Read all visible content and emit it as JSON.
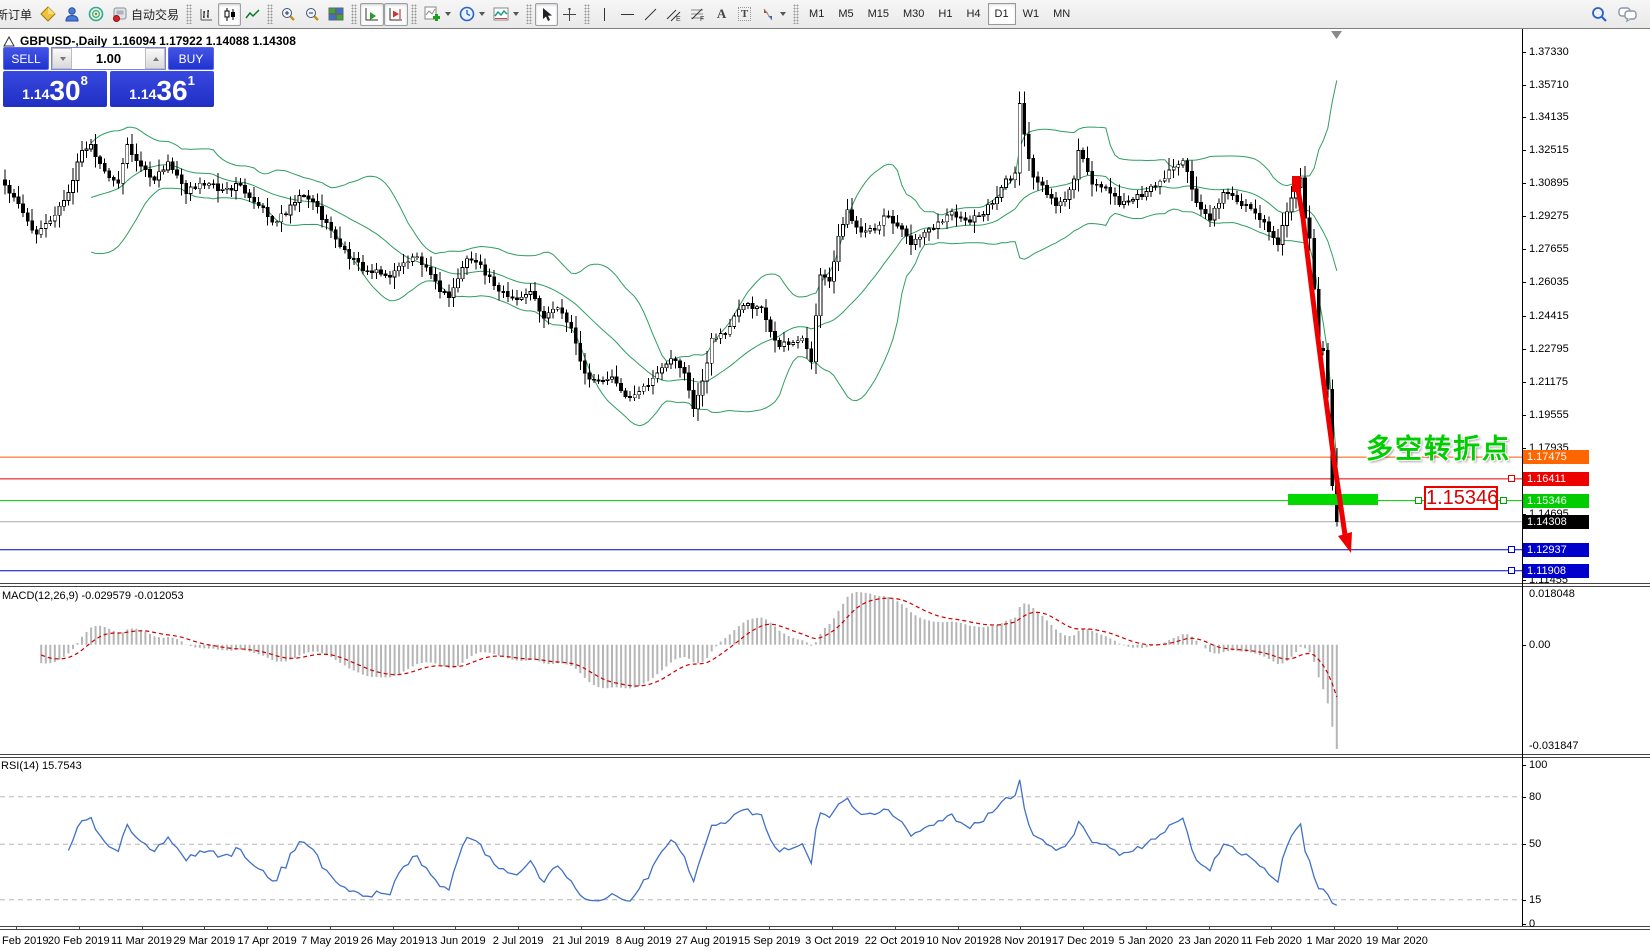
{
  "toolbar": {
    "new_order_label": "新订单",
    "autotrade_label": "自动交易",
    "timeframes": [
      "M1",
      "M5",
      "M15",
      "M30",
      "H1",
      "H4",
      "D1",
      "W1",
      "MN"
    ],
    "active_timeframe": "D1"
  },
  "chart_header": {
    "symbol_title": "GBPUSD-,Daily",
    "ohlc": "1.16094 1.17922 1.14088 1.14308"
  },
  "one_click": {
    "sell_label": "SELL",
    "buy_label": "BUY",
    "volume": "1.00",
    "sell_price_base": "1.14",
    "sell_price_big": "30",
    "sell_price_sup": "8",
    "buy_price_base": "1.14",
    "buy_price_big": "36",
    "buy_price_sup": "1"
  },
  "indicator_labels": {
    "macd": "MACD(12,26,9)",
    "macd_values": "-0.029579 -0.012053",
    "rsi": "RSI(14)",
    "rsi_value": "15.7543"
  },
  "annotations": {
    "turning_point_text": "多空转折点",
    "price_label": "1.15346"
  },
  "chart_data": {
    "type": "candlestick",
    "symbol": "GBPUSD",
    "timeframe": "Daily",
    "title": "GBPUSD-,Daily 1.16094 1.17922 1.14088 1.14308",
    "price_ticks": [
      "1.37330",
      "1.35710",
      "1.34135",
      "1.32515",
      "1.30895",
      "1.29275",
      "1.27655",
      "1.26035",
      "1.24415",
      "1.22795",
      "1.21175",
      "1.19555",
      "1.17935",
      "1.14695",
      "1.11455"
    ],
    "time_ticks": [
      "Feb 2019",
      "20 Feb 2019",
      "11 Mar 2019",
      "29 Mar 2019",
      "17 Apr 2019",
      "7 May 2019",
      "26 May 2019",
      "13 Jun 2019",
      "2 Jul 2019",
      "21 Jul 2019",
      "8 Aug 2019",
      "27 Aug 2019",
      "15 Sep 2019",
      "3 Oct 2019",
      "22 Oct 2019",
      "10 Nov 2019",
      "28 Nov 2019",
      "17 Dec 2019",
      "5 Jan 2020",
      "23 Jan 2020",
      "11 Feb 2020",
      "1 Mar 2020",
      "19 Mar 2020"
    ],
    "levels": [
      {
        "price": 1.17475,
        "color": "#ff5a00",
        "tag_bg": "#ff6600"
      },
      {
        "price": 1.16411,
        "color": "#dd0000",
        "tag_bg": "#ee0000",
        "anchor": true
      },
      {
        "price": 1.15346,
        "color": "#00c800",
        "tag_bg": "#00cc00"
      },
      {
        "price": 1.12937,
        "color": "#0000c8",
        "tag_bg": "#0000cc",
        "anchor": true
      },
      {
        "price": 1.11908,
        "color": "#0000c8",
        "tag_bg": "#0000cc",
        "anchor": true
      }
    ],
    "current_price": {
      "price": 1.14308,
      "line_color": "#aaaaaa",
      "tag_bg": "#000000"
    },
    "last_candle": {
      "open": 1.16094,
      "high": 1.17922,
      "low": 1.14088,
      "close": 1.14308
    },
    "bollinger": {
      "period": 20,
      "deviation": 2,
      "color": "#2f9e60"
    },
    "macd": {
      "fast": 12,
      "slow": 26,
      "signal": 9,
      "current": [
        -0.029579,
        -0.012053
      ],
      "axis": [
        "0.018048",
        "0.00",
        "-0.031847"
      ],
      "histogram_color": "#b6b6b6",
      "signal_color": "#cc0000"
    },
    "rsi": {
      "period": 14,
      "current": 15.7543,
      "axis": [
        "100",
        "80",
        "50",
        "15",
        "0"
      ],
      "level_lines": [
        80,
        50,
        15
      ],
      "color": "#4070c8"
    },
    "total_bars": 295,
    "close_path_keypoints": [
      [
        0,
        1.308
      ],
      [
        4,
        1.2945
      ],
      [
        7,
        1.284
      ],
      [
        10,
        1.2905
      ],
      [
        14,
        1.3045
      ],
      [
        17,
        1.325
      ],
      [
        19,
        1.328
      ],
      [
        22,
        1.315
      ],
      [
        25,
        1.309
      ],
      [
        27,
        1.328
      ],
      [
        29,
        1.32
      ],
      [
        33,
        1.3105
      ],
      [
        36,
        1.3195
      ],
      [
        40,
        1.304
      ],
      [
        43,
        1.309
      ],
      [
        48,
        1.306
      ],
      [
        52,
        1.308
      ],
      [
        56,
        1.298
      ],
      [
        59,
        1.29
      ],
      [
        62,
        1.2935
      ],
      [
        65,
        1.303
      ],
      [
        68,
        1.3
      ],
      [
        72,
        1.286
      ],
      [
        76,
        1.272
      ],
      [
        80,
        1.266
      ],
      [
        85,
        1.263
      ],
      [
        88,
        1.27
      ],
      [
        91,
        1.273
      ],
      [
        96,
        1.256
      ],
      [
        98,
        1.253
      ],
      [
        102,
        1.272
      ],
      [
        105,
        1.269
      ],
      [
        109,
        1.256
      ],
      [
        113,
        1.252
      ],
      [
        116,
        1.256
      ],
      [
        119,
        1.243
      ],
      [
        122,
        1.248
      ],
      [
        125,
        1.238
      ],
      [
        128,
        1.216
      ],
      [
        131,
        1.212
      ],
      [
        134,
        1.214
      ],
      [
        137,
        1.2045
      ],
      [
        140,
        1.207
      ],
      [
        144,
        1.216
      ],
      [
        147,
        1.223
      ],
      [
        150,
        1.216
      ],
      [
        151,
        1.2075
      ],
      [
        152,
        1.1985
      ],
      [
        154,
        1.212
      ],
      [
        156,
        1.233
      ],
      [
        159,
        1.235
      ],
      [
        162,
        1.247
      ],
      [
        164,
        1.25
      ],
      [
        167,
        1.248
      ],
      [
        170,
        1.232
      ],
      [
        171,
        1.229
      ],
      [
        173,
        1.23
      ],
      [
        176,
        1.233
      ],
      [
        178,
        1.2215
      ],
      [
        179,
        1.244
      ],
      [
        180,
        1.264
      ],
      [
        182,
        1.261
      ],
      [
        184,
        1.283
      ],
      [
        186,
        1.296
      ],
      [
        189,
        1.285
      ],
      [
        192,
        1.286
      ],
      [
        194,
        1.293
      ],
      [
        197,
        1.288
      ],
      [
        200,
        1.279
      ],
      [
        203,
        1.285
      ],
      [
        206,
        1.29
      ],
      [
        209,
        1.295
      ],
      [
        212,
        1.291
      ],
      [
        215,
        1.293
      ],
      [
        218,
        1.299
      ],
      [
        221,
        1.311
      ],
      [
        223,
        1.314
      ],
      [
        224,
        1.348
      ],
      [
        225,
        1.333
      ],
      [
        227,
        1.312
      ],
      [
        229,
        1.308
      ],
      [
        232,
        1.298
      ],
      [
        234,
        1.301
      ],
      [
        236,
        1.311
      ],
      [
        237,
        1.325
      ],
      [
        240,
        1.3085
      ],
      [
        243,
        1.307
      ],
      [
        246,
        1.2985
      ],
      [
        249,
        1.301
      ],
      [
        252,
        1.305
      ],
      [
        255,
        1.31
      ],
      [
        259,
        1.318
      ],
      [
        260,
        1.32
      ],
      [
        263,
        1.2995
      ],
      [
        266,
        1.291
      ],
      [
        269,
        1.3045
      ],
      [
        272,
        1.3
      ],
      [
        275,
        1.2965
      ],
      [
        278,
        1.29
      ],
      [
        280,
        1.2823
      ],
      [
        281,
        1.279
      ],
      [
        283,
        1.295
      ],
      [
        286,
        1.3115
      ],
      [
        287,
        1.292
      ],
      [
        288,
        1.282
      ],
      [
        289,
        1.257
      ],
      [
        290,
        1.228
      ],
      [
        291,
        1.227
      ],
      [
        292,
        1.208
      ],
      [
        293,
        1.1609
      ],
      [
        294,
        1.14308
      ]
    ]
  }
}
